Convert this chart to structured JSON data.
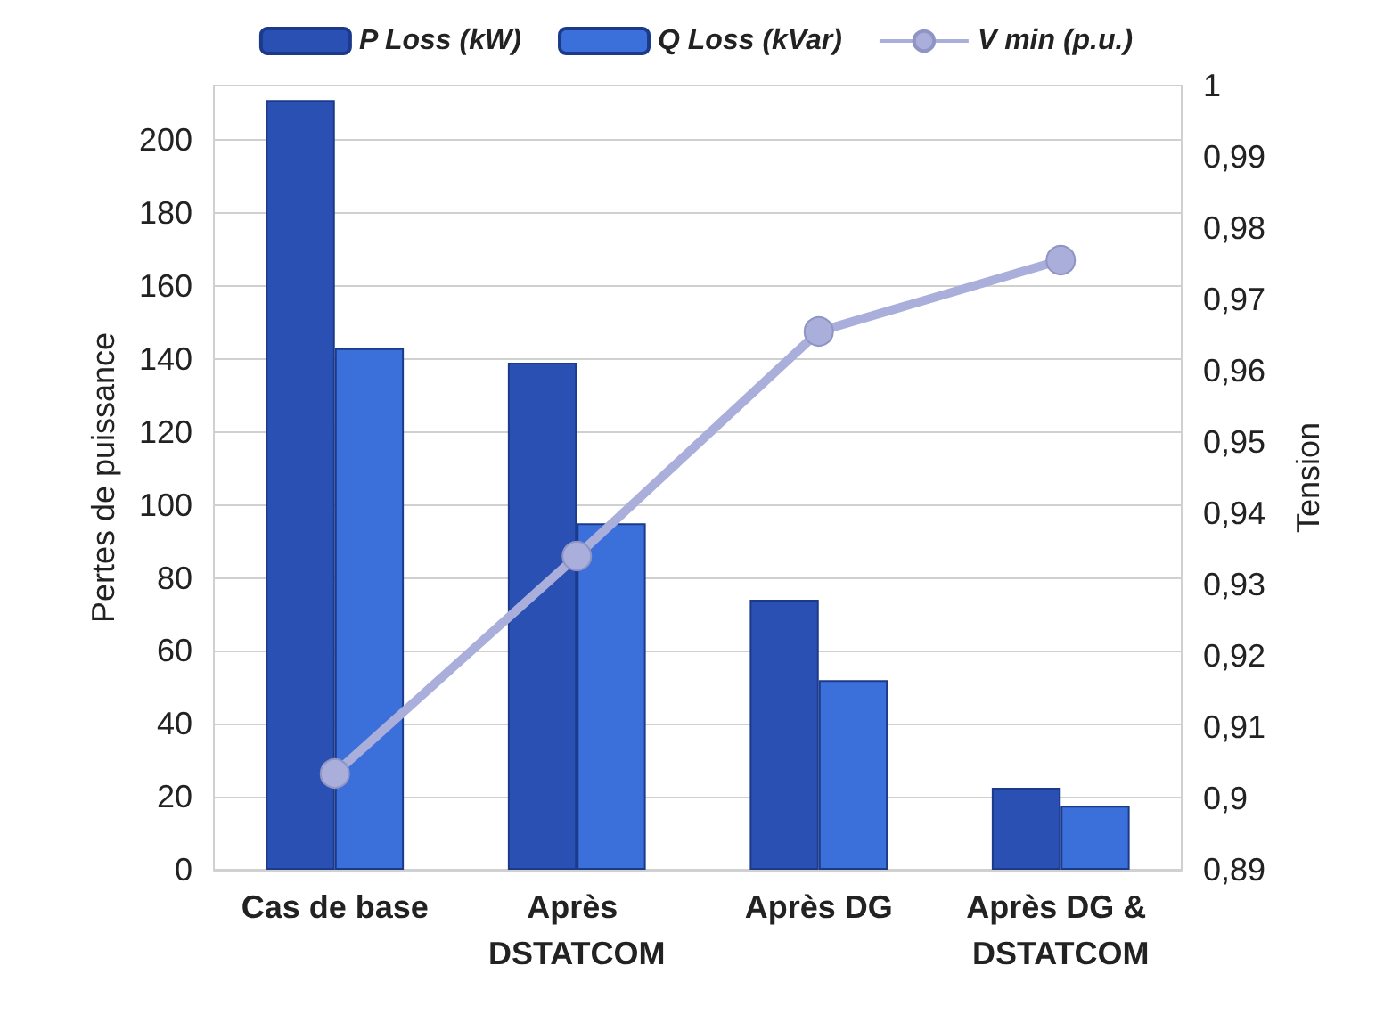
{
  "chart_data": {
    "type": "bar",
    "categories": [
      "Cas de base",
      "Après DSTATCOM",
      "Après DG",
      "Après DG & DSTATCOM"
    ],
    "series": [
      {
        "name": "P Loss (kW)",
        "color": "#2a50b4",
        "values": [
          211,
          139,
          74,
          22.5
        ]
      },
      {
        "name": "Q Loss (kVar)",
        "color": "#3b70db",
        "values": [
          143,
          95,
          52,
          17.5
        ]
      },
      {
        "name": "V min (p.u.)",
        "type": "line",
        "axis": "y2",
        "color": "#a9aedb",
        "values": [
          0.9035,
          0.934,
          0.9655,
          0.9755
        ]
      }
    ],
    "ylabel": "Pertes de puissance",
    "y2label": "Tension",
    "ylim": [
      0,
      215
    ],
    "yticks": [
      0,
      20,
      40,
      60,
      80,
      100,
      120,
      140,
      160,
      180,
      200
    ],
    "y2lim": [
      0.89,
      1
    ],
    "y2ticks": [
      {
        "value": 0.89,
        "label": "0,89"
      },
      {
        "value": 0.9,
        "label": "0,9"
      },
      {
        "value": 0.91,
        "label": "0,91"
      },
      {
        "value": 0.92,
        "label": "0,92"
      },
      {
        "value": 0.93,
        "label": "0,93"
      },
      {
        "value": 0.94,
        "label": "0,94"
      },
      {
        "value": 0.95,
        "label": "0,95"
      },
      {
        "value": 0.96,
        "label": "0,96"
      },
      {
        "value": 0.97,
        "label": "0,97"
      },
      {
        "value": 0.98,
        "label": "0,98"
      },
      {
        "value": 0.99,
        "label": "0,99"
      },
      {
        "value": 1,
        "label": "1"
      }
    ],
    "grid": "y",
    "legend": "top",
    "marker": "circle"
  }
}
